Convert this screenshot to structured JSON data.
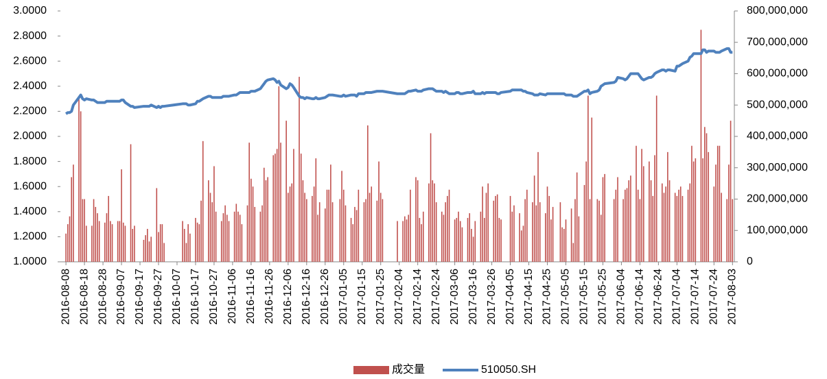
{
  "chart_data": {
    "type": "combo",
    "x": [
      "2016-08-08",
      "2016-08-09",
      "2016-08-10",
      "2016-08-11",
      "2016-08-12",
      "2016-08-15",
      "2016-08-16",
      "2016-08-17",
      "2016-08-18",
      "2016-08-19",
      "2016-08-22",
      "2016-08-23",
      "2016-08-24",
      "2016-08-25",
      "2016-08-26",
      "2016-08-29",
      "2016-08-30",
      "2016-08-31",
      "2016-09-01",
      "2016-09-02",
      "2016-09-05",
      "2016-09-06",
      "2016-09-07",
      "2016-09-08",
      "2016-09-09",
      "2016-09-12",
      "2016-09-13",
      "2016-09-14",
      "2016-09-19",
      "2016-09-20",
      "2016-09-21",
      "2016-09-22",
      "2016-09-23",
      "2016-09-26",
      "2016-09-27",
      "2016-09-28",
      "2016-09-29",
      "2016-09-30",
      "2016-10-10",
      "2016-10-11",
      "2016-10-12",
      "2016-10-13",
      "2016-10-14",
      "2016-10-17",
      "2016-10-18",
      "2016-10-19",
      "2016-10-20",
      "2016-10-21",
      "2016-10-24",
      "2016-10-25",
      "2016-10-26",
      "2016-10-27",
      "2016-10-28",
      "2016-10-31",
      "2016-11-01",
      "2016-11-02",
      "2016-11-03",
      "2016-11-04",
      "2016-11-07",
      "2016-11-08",
      "2016-11-09",
      "2016-11-10",
      "2016-11-11",
      "2016-11-14",
      "2016-11-15",
      "2016-11-16",
      "2016-11-17",
      "2016-11-18",
      "2016-11-21",
      "2016-11-22",
      "2016-11-23",
      "2016-11-24",
      "2016-11-25",
      "2016-11-28",
      "2016-11-29",
      "2016-11-30",
      "2016-12-01",
      "2016-12-02",
      "2016-12-05",
      "2016-12-06",
      "2016-12-07",
      "2016-12-08",
      "2016-12-09",
      "2016-12-12",
      "2016-12-13",
      "2016-12-14",
      "2016-12-15",
      "2016-12-16",
      "2016-12-19",
      "2016-12-20",
      "2016-12-21",
      "2016-12-22",
      "2016-12-23",
      "2016-12-26",
      "2016-12-27",
      "2016-12-28",
      "2016-12-29",
      "2016-12-30",
      "2017-01-03",
      "2017-01-04",
      "2017-01-05",
      "2017-01-06",
      "2017-01-09",
      "2017-01-10",
      "2017-01-11",
      "2017-01-12",
      "2017-01-13",
      "2017-01-16",
      "2017-01-17",
      "2017-01-18",
      "2017-01-19",
      "2017-01-20",
      "2017-01-23",
      "2017-01-24",
      "2017-01-25",
      "2017-01-26",
      "2017-02-03",
      "2017-02-06",
      "2017-02-07",
      "2017-02-08",
      "2017-02-09",
      "2017-02-10",
      "2017-02-13",
      "2017-02-14",
      "2017-02-15",
      "2017-02-16",
      "2017-02-17",
      "2017-02-20",
      "2017-02-21",
      "2017-02-22",
      "2017-02-23",
      "2017-02-24",
      "2017-02-27",
      "2017-02-28",
      "2017-03-01",
      "2017-03-02",
      "2017-03-03",
      "2017-03-06",
      "2017-03-07",
      "2017-03-08",
      "2017-03-09",
      "2017-03-10",
      "2017-03-13",
      "2017-03-14",
      "2017-03-15",
      "2017-03-16",
      "2017-03-17",
      "2017-03-20",
      "2017-03-21",
      "2017-03-22",
      "2017-03-23",
      "2017-03-24",
      "2017-03-27",
      "2017-03-28",
      "2017-03-29",
      "2017-03-30",
      "2017-03-31",
      "2017-04-05",
      "2017-04-06",
      "2017-04-07",
      "2017-04-10",
      "2017-04-11",
      "2017-04-12",
      "2017-04-13",
      "2017-04-14",
      "2017-04-17",
      "2017-04-18",
      "2017-04-19",
      "2017-04-20",
      "2017-04-21",
      "2017-04-24",
      "2017-04-25",
      "2017-04-26",
      "2017-04-27",
      "2017-04-28",
      "2017-05-02",
      "2017-05-03",
      "2017-05-04",
      "2017-05-05",
      "2017-05-08",
      "2017-05-09",
      "2017-05-10",
      "2017-05-11",
      "2017-05-12",
      "2017-05-15",
      "2017-05-16",
      "2017-05-17",
      "2017-05-18",
      "2017-05-19",
      "2017-05-22",
      "2017-05-23",
      "2017-05-24",
      "2017-05-25",
      "2017-05-26",
      "2017-05-31",
      "2017-06-01",
      "2017-06-02",
      "2017-06-05",
      "2017-06-06",
      "2017-06-07",
      "2017-06-08",
      "2017-06-09",
      "2017-06-12",
      "2017-06-13",
      "2017-06-14",
      "2017-06-15",
      "2017-06-16",
      "2017-06-19",
      "2017-06-20",
      "2017-06-21",
      "2017-06-22",
      "2017-06-23",
      "2017-06-26",
      "2017-06-27",
      "2017-06-28",
      "2017-06-29",
      "2017-06-30",
      "2017-07-03",
      "2017-07-04",
      "2017-07-05",
      "2017-07-06",
      "2017-07-07",
      "2017-07-10",
      "2017-07-11",
      "2017-07-12",
      "2017-07-13",
      "2017-07-14",
      "2017-07-17",
      "2017-07-18",
      "2017-07-19",
      "2017-07-20",
      "2017-07-21",
      "2017-07-24",
      "2017-07-25",
      "2017-07-26",
      "2017-07-27",
      "2017-07-28",
      "2017-07-31",
      "2017-08-01",
      "2017-08-02",
      "2017-08-03"
    ],
    "series": [
      {
        "name": "成交量",
        "type": "bar",
        "axis": "y2",
        "color": "#c0504d",
        "values": [
          90000000.0,
          120000000.0,
          145000000.0,
          270000000.0,
          310000000.0,
          520000000.0,
          480000000.0,
          200000000.0,
          200000000.0,
          115000000.0,
          115000000.0,
          200000000.0,
          175000000.0,
          155000000.0,
          130000000.0,
          125000000.0,
          155000000.0,
          210000000.0,
          130000000.0,
          120000000.0,
          130000000.0,
          130000000.0,
          295000000.0,
          125000000.0,
          115000000.0,
          375000000.0,
          105000000.0,
          115000000.0,
          70000000.0,
          85000000.0,
          105000000.0,
          65000000.0,
          80000000.0,
          235000000.0,
          95000000.0,
          120000000.0,
          120000000.0,
          60000000.0,
          130000000.0,
          105000000.0,
          60000000.0,
          120000000.0,
          90000000.0,
          140000000.0,
          125000000.0,
          120000000.0,
          195000000.0,
          385000000.0,
          260000000.0,
          220000000.0,
          190000000.0,
          305000000.0,
          160000000.0,
          130000000.0,
          155000000.0,
          180000000.0,
          150000000.0,
          130000000.0,
          160000000.0,
          185000000.0,
          160000000.0,
          150000000.0,
          120000000.0,
          180000000.0,
          380000000.0,
          265000000.0,
          240000000.0,
          175000000.0,
          160000000.0,
          180000000.0,
          300000000.0,
          260000000.0,
          270000000.0,
          340000000.0,
          345000000.0,
          360000000.0,
          560000000.0,
          380000000.0,
          450000000.0,
          220000000.0,
          240000000.0,
          250000000.0,
          360000000.0,
          590000000.0,
          345000000.0,
          260000000.0,
          220000000.0,
          200000000.0,
          210000000.0,
          240000000.0,
          330000000.0,
          150000000.0,
          190000000.0,
          170000000.0,
          230000000.0,
          230000000.0,
          310000000.0,
          190000000.0,
          200000000.0,
          290000000.0,
          230000000.0,
          180000000.0,
          140000000.0,
          120000000.0,
          175000000.0,
          165000000.0,
          230000000.0,
          190000000.0,
          200000000.0,
          435000000.0,
          220000000.0,
          240000000.0,
          195000000.0,
          320000000.0,
          220000000.0,
          200000000.0,
          130000000.0,
          130000000.0,
          145000000.0,
          135000000.0,
          150000000.0,
          230000000.0,
          270000000.0,
          260000000.0,
          140000000.0,
          120000000.0,
          160000000.0,
          250000000.0,
          410000000.0,
          260000000.0,
          250000000.0,
          190000000.0,
          160000000.0,
          150000000.0,
          190000000.0,
          210000000.0,
          230000000.0,
          135000000.0,
          140000000.0,
          160000000.0,
          130000000.0,
          110000000.0,
          140000000.0,
          155000000.0,
          105000000.0,
          80000000.0,
          130000000.0,
          160000000.0,
          240000000.0,
          140000000.0,
          220000000.0,
          250000000.0,
          195000000.0,
          210000000.0,
          215000000.0,
          140000000.0,
          135000000.0,
          210000000.0,
          160000000.0,
          180000000.0,
          155000000.0,
          100000000.0,
          115000000.0,
          200000000.0,
          230000000.0,
          190000000.0,
          275000000.0,
          180000000.0,
          350000000.0,
          190000000.0,
          155000000.0,
          240000000.0,
          210000000.0,
          135000000.0,
          175000000.0,
          190000000.0,
          110000000.0,
          105000000.0,
          135000000.0,
          170000000.0,
          60000000.0,
          200000000.0,
          285000000.0,
          145000000.0,
          245000000.0,
          320000000.0,
          530000000.0,
          200000000.0,
          460000000.0,
          200000000.0,
          195000000.0,
          150000000.0,
          270000000.0,
          280000000.0,
          200000000.0,
          230000000.0,
          270000000.0,
          200000000.0,
          230000000.0,
          235000000.0,
          260000000.0,
          275000000.0,
          370000000.0,
          230000000.0,
          200000000.0,
          360000000.0,
          305000000.0,
          320000000.0,
          260000000.0,
          210000000.0,
          340000000.0,
          530000000.0,
          250000000.0,
          220000000.0,
          240000000.0,
          350000000.0,
          260000000.0,
          220000000.0,
          210000000.0,
          230000000.0,
          240000000.0,
          210000000.0,
          230000000.0,
          250000000.0,
          370000000.0,
          320000000.0,
          330000000.0,
          740000000.0,
          330000000.0,
          430000000.0,
          410000000.0,
          350000000.0,
          240000000.0,
          310000000.0,
          370000000.0,
          370000000.0,
          220000000.0,
          200000000.0,
          310000000.0,
          450000000.0,
          200000000.0
        ]
      },
      {
        "name": "510050.SH",
        "type": "line",
        "axis": "y",
        "color": "#4f81bd",
        "values": [
          2.18,
          2.19,
          2.19,
          2.2,
          2.25,
          2.31,
          2.33,
          2.3,
          2.29,
          2.3,
          2.29,
          2.29,
          2.28,
          2.27,
          2.27,
          2.27,
          2.28,
          2.28,
          2.28,
          2.28,
          2.28,
          2.28,
          2.29,
          2.29,
          2.27,
          2.24,
          2.24,
          2.23,
          2.24,
          2.24,
          2.24,
          2.24,
          2.25,
          2.23,
          2.24,
          2.23,
          2.24,
          2.24,
          2.26,
          2.26,
          2.26,
          2.25,
          2.25,
          2.26,
          2.28,
          2.28,
          2.29,
          2.3,
          2.32,
          2.32,
          2.31,
          2.31,
          2.31,
          2.31,
          2.32,
          2.32,
          2.32,
          2.32,
          2.33,
          2.33,
          2.34,
          2.35,
          2.35,
          2.35,
          2.35,
          2.36,
          2.36,
          2.36,
          2.38,
          2.4,
          2.42,
          2.44,
          2.45,
          2.46,
          2.45,
          2.43,
          2.44,
          2.41,
          2.38,
          2.39,
          2.42,
          2.41,
          2.39,
          2.32,
          2.31,
          2.31,
          2.3,
          2.31,
          2.3,
          2.3,
          2.31,
          2.3,
          2.3,
          2.31,
          2.32,
          2.33,
          2.33,
          2.33,
          2.32,
          2.32,
          2.33,
          2.32,
          2.33,
          2.33,
          2.33,
          2.32,
          2.34,
          2.34,
          2.35,
          2.35,
          2.35,
          2.35,
          2.36,
          2.36,
          2.36,
          2.36,
          2.34,
          2.34,
          2.34,
          2.35,
          2.36,
          2.36,
          2.37,
          2.36,
          2.36,
          2.36,
          2.37,
          2.38,
          2.38,
          2.38,
          2.37,
          2.36,
          2.36,
          2.35,
          2.36,
          2.35,
          2.34,
          2.34,
          2.35,
          2.35,
          2.34,
          2.34,
          2.35,
          2.35,
          2.35,
          2.36,
          2.34,
          2.34,
          2.35,
          2.34,
          2.35,
          2.35,
          2.35,
          2.35,
          2.34,
          2.34,
          2.35,
          2.36,
          2.37,
          2.37,
          2.37,
          2.37,
          2.36,
          2.36,
          2.35,
          2.34,
          2.33,
          2.33,
          2.33,
          2.34,
          2.33,
          2.34,
          2.34,
          2.34,
          2.34,
          2.34,
          2.34,
          2.34,
          2.33,
          2.33,
          2.32,
          2.32,
          2.32,
          2.33,
          2.36,
          2.36,
          2.37,
          2.34,
          2.35,
          2.36,
          2.37,
          2.4,
          2.41,
          2.42,
          2.43,
          2.44,
          2.47,
          2.46,
          2.45,
          2.46,
          2.48,
          2.5,
          2.5,
          2.5,
          2.48,
          2.46,
          2.45,
          2.47,
          2.47,
          2.48,
          2.5,
          2.51,
          2.53,
          2.53,
          2.52,
          2.53,
          2.53,
          2.52,
          2.56,
          2.56,
          2.57,
          2.58,
          2.6,
          2.63,
          2.64,
          2.66,
          2.66,
          2.66,
          2.69,
          2.69,
          2.67,
          2.68,
          2.68,
          2.67,
          2.67,
          2.67,
          2.68,
          2.7,
          2.7,
          2.67,
          2.67
        ]
      }
    ],
    "xlim": [
      "2016-08-05",
      "2017-08-04"
    ],
    "xticks": [
      "2016-08-08",
      "2016-08-18",
      "2016-08-28",
      "2016-09-07",
      "2016-09-17",
      "2016-09-27",
      "2016-10-07",
      "2016-10-17",
      "2016-10-27",
      "2016-11-06",
      "2016-11-16",
      "2016-11-26",
      "2016-12-06",
      "2016-12-16",
      "2016-12-26",
      "2017-01-05",
      "2017-01-15",
      "2017-01-25",
      "2017-02-04",
      "2017-02-14",
      "2017-02-24",
      "2017-03-06",
      "2017-03-16",
      "2017-03-26",
      "2017-04-05",
      "2017-04-15",
      "2017-04-25",
      "2017-05-05",
      "2017-05-15",
      "2017-05-25",
      "2017-06-04",
      "2017-06-14",
      "2017-06-24",
      "2017-07-04",
      "2017-07-14",
      "2017-07-24",
      "2017-08-03"
    ],
    "ylim": [
      1,
      3
    ],
    "yticks": [
      {
        "value": 1,
        "label": "1.0000"
      },
      {
        "value": 1.2,
        "label": "1.2000"
      },
      {
        "value": 1.4,
        "label": "1.4000"
      },
      {
        "value": 1.6,
        "label": "1.6000"
      },
      {
        "value": 1.8,
        "label": "1.8000"
      },
      {
        "value": 2,
        "label": "2.0000"
      },
      {
        "value": 2.2,
        "label": "2.2000"
      },
      {
        "value": 2.4,
        "label": "2.4000"
      },
      {
        "value": 2.6,
        "label": "2.6000"
      },
      {
        "value": 2.8,
        "label": "2.8000"
      },
      {
        "value": 3,
        "label": "3.0000"
      }
    ],
    "y2lim": [
      0,
      800000000
    ],
    "y2ticks": [
      0,
      {
        "value": 100000000,
        "label": "100,000,000"
      },
      {
        "value": 200000000,
        "label": "200,000,000"
      },
      {
        "value": 300000000,
        "label": "300,000,000"
      },
      {
        "value": 400000000,
        "label": "400,000,000"
      },
      {
        "value": 500000000,
        "label": "500,000,000"
      },
      {
        "value": 600000000,
        "label": "600,000,000"
      },
      {
        "value": 700000000,
        "label": "700,000,000"
      },
      {
        "value": 800000000,
        "label": "800,000,000"
      }
    ],
    "legend": "bottom"
  }
}
